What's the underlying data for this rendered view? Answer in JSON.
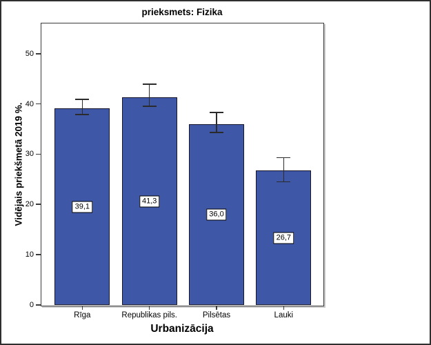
{
  "window": {
    "title": "prieksmets: Fizika"
  },
  "chart_data": {
    "type": "bar",
    "title": "prieksmets: Fizika",
    "xlabel": "Urbanizācija",
    "ylabel": "Vidējais priekšmetā 2019 %.",
    "categories": [
      "Rīga",
      "Republikas pils.",
      "Pilsētas",
      "Lauki"
    ],
    "values": [
      39.1,
      41.3,
      36.0,
      26.7
    ],
    "value_labels": [
      "39,1",
      "41,3",
      "36,0",
      "26,7"
    ],
    "error_upper": [
      40.9,
      43.9,
      38.3,
      29.3
    ],
    "error_lower": [
      37.9,
      39.5,
      34.3,
      24.5
    ],
    "yticks": [
      0,
      10,
      20,
      30,
      40,
      50
    ],
    "ytick_labels": [
      "0",
      "10",
      "20",
      "30",
      "40",
      "50"
    ],
    "ylim": [
      0,
      56
    ],
    "grid": false,
    "legend_position": "none",
    "colors": {
      "bar_fill": "#3F57A7",
      "bar_border": "#14152B",
      "error_bar": "#2B2B2B",
      "axis": "#3A3A3A",
      "text": "#000000",
      "background": "#FFFFFF"
    }
  }
}
